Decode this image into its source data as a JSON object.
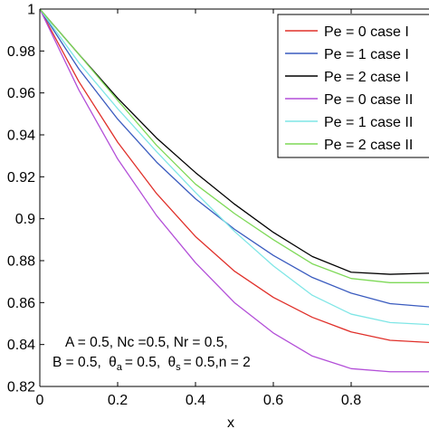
{
  "chart_data": {
    "type": "line",
    "title": "",
    "xlabel": "x",
    "ylabel": "",
    "xlim": [
      0,
      1
    ],
    "ylim": [
      0.82,
      1
    ],
    "grid": false,
    "legend_placement": "top-right",
    "x_ticks": [
      "0",
      "0.2",
      "0.4",
      "0.6",
      "0.8"
    ],
    "y_ticks": [
      "0.82",
      "0.84",
      "0.86",
      "0.88",
      "0.9",
      "0.92",
      "0.94",
      "0.96",
      "0.98",
      "1"
    ],
    "x": [
      0,
      0.1,
      0.2,
      0.3,
      0.4,
      0.5,
      0.6,
      0.7,
      0.8,
      0.9,
      1.0
    ],
    "series": [
      {
        "name": "Pe = 0 case I",
        "color": "#e0302a",
        "values": [
          1.0,
          0.9655,
          0.9365,
          0.912,
          0.8915,
          0.875,
          0.8625,
          0.853,
          0.846,
          0.842,
          0.841
        ]
      },
      {
        "name": "Pe = 1 case I",
        "color": "#3a5bbf",
        "values": [
          1.0,
          0.9715,
          0.9475,
          0.927,
          0.9095,
          0.895,
          0.8825,
          0.872,
          0.8645,
          0.8595,
          0.858
        ]
      },
      {
        "name": "Pe = 2 case I",
        "color": "#000000",
        "values": [
          1.0,
          0.9785,
          0.9575,
          0.9385,
          0.922,
          0.907,
          0.8935,
          0.882,
          0.8745,
          0.8735,
          0.874
        ]
      },
      {
        "name": "Pe = 0 case II",
        "color": "#b34fd8",
        "values": [
          1.0,
          0.9615,
          0.9285,
          0.9015,
          0.879,
          0.86,
          0.8455,
          0.8345,
          0.8285,
          0.827,
          0.827
        ]
      },
      {
        "name": "Pe = 1 case II",
        "color": "#7fe6e6",
        "values": [
          1.0,
          0.9745,
          0.9525,
          0.932,
          0.9125,
          0.894,
          0.8775,
          0.8635,
          0.8545,
          0.8505,
          0.8495
        ]
      },
      {
        "name": "Pe = 2 case II",
        "color": "#7ed957",
        "values": [
          1.0,
          0.9785,
          0.9565,
          0.935,
          0.9165,
          0.9025,
          0.89,
          0.8785,
          0.8715,
          0.8695,
          0.8695
        ]
      }
    ],
    "annotation": {
      "line1": "A = 0.5, Nc =0.5, Nr = 0.5,",
      "line2_b": "B = 0.5,",
      "theta": "θ",
      "sub_a": "a",
      "eq_a": "= 0.5,",
      "sub_s": "s",
      "eq_s": "= 0.5,n = 2"
    }
  }
}
